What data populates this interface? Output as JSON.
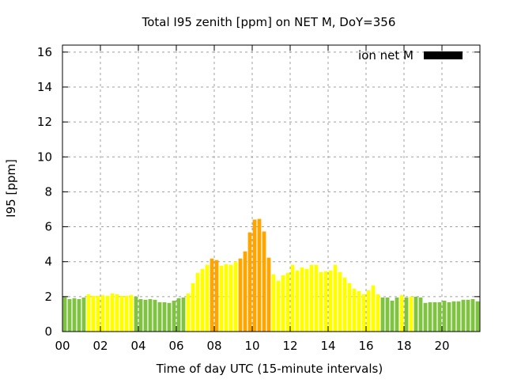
{
  "chart_data": {
    "type": "bar",
    "title": "Total I95 zenith [ppm] on NET M, DoY=356",
    "xlabel": "Time of day UTC (15-minute intervals)",
    "ylabel": "I95 [ppm]",
    "xlim": [
      0,
      22
    ],
    "ylim": [
      0,
      16.4
    ],
    "x_ticks": [
      "00",
      "02",
      "04",
      "06",
      "08",
      "10",
      "12",
      "14",
      "16",
      "18",
      "20"
    ],
    "x_tick_values": [
      0,
      2,
      4,
      6,
      8,
      10,
      12,
      14,
      16,
      18,
      20
    ],
    "y_ticks": [
      "0",
      "2",
      "4",
      "6",
      "8",
      "10",
      "12",
      "14",
      "16"
    ],
    "y_tick_values": [
      0,
      2,
      4,
      6,
      8,
      10,
      12,
      14,
      16
    ],
    "grid": true,
    "legend": {
      "position": "top-right",
      "entries": [
        {
          "label": "ion net M",
          "color": "#000000"
        }
      ]
    },
    "interval_hours": 0.25,
    "colors": {
      "green": "#80c342",
      "yellow": "#ffff00",
      "orange": "#ffa500"
    },
    "values": [
      1.97,
      1.86,
      1.91,
      1.86,
      1.95,
      2.14,
      2.05,
      2.05,
      2.08,
      2.05,
      2.18,
      2.14,
      2.05,
      2.05,
      2.09,
      2.0,
      1.86,
      1.82,
      1.86,
      1.82,
      1.68,
      1.68,
      1.64,
      1.77,
      1.91,
      1.95,
      2.18,
      2.77,
      3.36,
      3.59,
      3.82,
      4.18,
      4.09,
      3.77,
      3.86,
      3.82,
      4.0,
      4.18,
      4.59,
      5.68,
      6.41,
      6.45,
      5.73,
      4.23,
      3.27,
      2.91,
      3.23,
      3.36,
      3.82,
      3.5,
      3.68,
      3.59,
      3.82,
      3.82,
      3.41,
      3.45,
      3.5,
      3.82,
      3.41,
      3.09,
      2.77,
      2.45,
      2.32,
      2.14,
      2.36,
      2.64,
      2.14,
      1.95,
      1.95,
      1.77,
      1.95,
      2.09,
      1.95,
      2.0,
      2.0,
      1.95,
      1.64,
      1.68,
      1.68,
      1.68,
      1.77,
      1.68,
      1.73,
      1.73,
      1.82,
      1.82,
      1.86,
      1.73
    ],
    "bar_colors": [
      "green",
      "green",
      "green",
      "green",
      "green",
      "yellow",
      "yellow",
      "yellow",
      "yellow",
      "yellow",
      "yellow",
      "yellow",
      "yellow",
      "yellow",
      "yellow",
      "green",
      "green",
      "green",
      "green",
      "green",
      "green",
      "green",
      "green",
      "green",
      "green",
      "green",
      "yellow",
      "yellow",
      "yellow",
      "yellow",
      "yellow",
      "orange",
      "orange",
      "yellow",
      "yellow",
      "yellow",
      "yellow",
      "orange",
      "orange",
      "orange",
      "orange",
      "orange",
      "orange",
      "orange",
      "yellow",
      "yellow",
      "yellow",
      "yellow",
      "yellow",
      "yellow",
      "yellow",
      "yellow",
      "yellow",
      "yellow",
      "yellow",
      "yellow",
      "yellow",
      "yellow",
      "yellow",
      "yellow",
      "yellow",
      "yellow",
      "yellow",
      "yellow",
      "yellow",
      "yellow",
      "yellow",
      "green",
      "green",
      "green",
      "green",
      "yellow",
      "green",
      "yellow",
      "green",
      "green",
      "green",
      "green",
      "green",
      "green",
      "green",
      "green",
      "green",
      "green",
      "green",
      "green",
      "green",
      "green"
    ]
  }
}
